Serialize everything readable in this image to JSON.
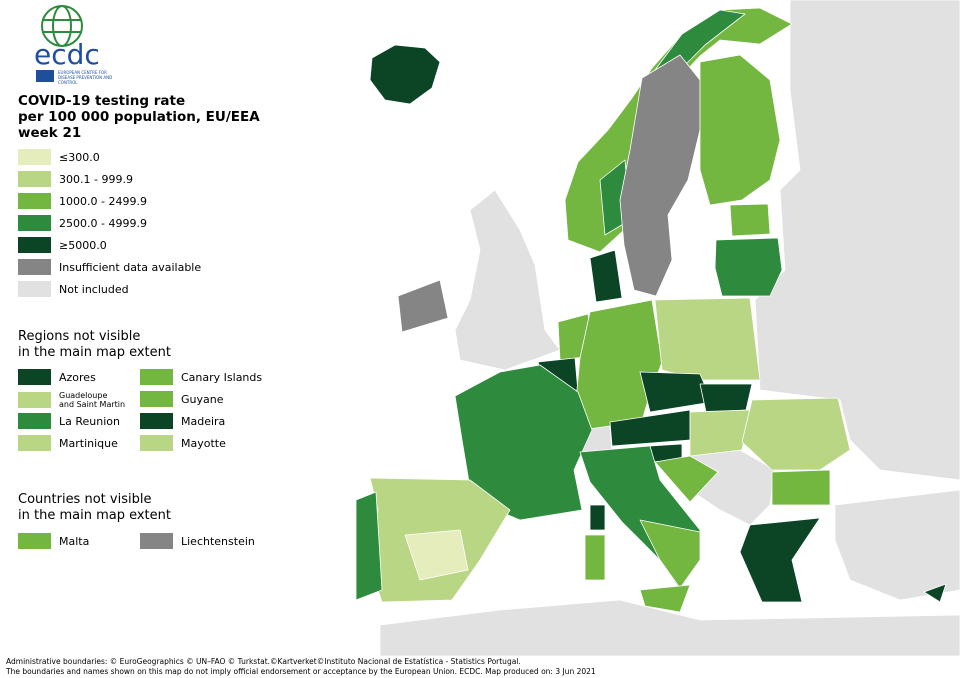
{
  "logo": {
    "acronym": "ecdc",
    "name": "EUROPEAN CENTRE FOR DISEASE PREVENTION AND CONTROL"
  },
  "title": [
    "COVID-19 testing rate",
    "per 100 000 population, EU/EEA",
    "week 21"
  ],
  "legend": {
    "items": [
      {
        "label": "≤300.0",
        "color": "#e6edbc"
      },
      {
        "label": "300.1 - 999.9",
        "color": "#b8d683"
      },
      {
        "label": "1000.0 - 2499.9",
        "color": "#73b640"
      },
      {
        "label": "2500.0 - 4999.9",
        "color": "#2e8b3e"
      },
      {
        "label": "≥5000.0",
        "color": "#0b4526"
      },
      {
        "label": "Insufficient data available",
        "color": "#858585"
      },
      {
        "label": "Not included",
        "color": "#e1e1e1"
      }
    ]
  },
  "regions": {
    "heading": [
      "Regions not visible",
      "in the main map extent"
    ],
    "items": [
      {
        "label": "Azores",
        "color": "#0b4526"
      },
      {
        "label": "Guadeloupe\nand Saint Martin",
        "color": "#b8d683"
      },
      {
        "label": "La Reunion",
        "color": "#2e8b3e"
      },
      {
        "label": "Martinique",
        "color": "#b8d683"
      },
      {
        "label": "Canary Islands",
        "color": "#73b640"
      },
      {
        "label": "Guyane",
        "color": "#73b640"
      },
      {
        "label": "Madeira",
        "color": "#0b4526"
      },
      {
        "label": "Mayotte",
        "color": "#b8d683"
      }
    ]
  },
  "countries": {
    "heading": [
      "Countries not visible",
      "in the main map extent"
    ],
    "items": [
      {
        "label": "Malta",
        "color": "#73b640"
      },
      {
        "label": "Liechtenstein",
        "color": "#858585"
      }
    ]
  },
  "footer": [
    "Administrative boundaries: © EuroGeographics © UN–FAO © Turkstat.©Kartverket©Instituto Nacional de Estatística - Statistics Portugal.",
    "The boundaries and names shown on this map do not imply official endorsement or acceptance by the European Union. ECDC. Map produced on: 3 Jun 2021"
  ]
}
